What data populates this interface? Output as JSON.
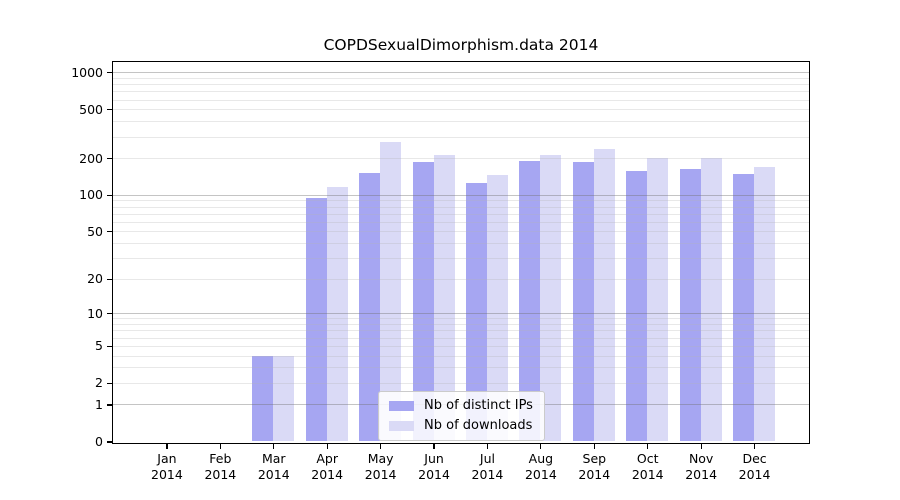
{
  "chart_data": {
    "type": "bar",
    "title": "COPDSexualDimorphism.data 2014",
    "categories": [
      "Jan 2014",
      "Feb 2014",
      "Mar 2014",
      "Apr 2014",
      "May 2014",
      "Jun 2014",
      "Jul 2014",
      "Aug 2014",
      "Sep 2014",
      "Oct 2014",
      "Nov 2014",
      "Dec 2014"
    ],
    "x_axis": {
      "months": [
        "Jan",
        "Feb",
        "Mar",
        "Apr",
        "May",
        "Jun",
        "Jul",
        "Aug",
        "Sep",
        "Oct",
        "Nov",
        "Dec"
      ],
      "year_label": "2014"
    },
    "series": [
      {
        "name": "Nb of distinct IPs",
        "color": "#a6a6f2",
        "values": [
          0,
          0,
          4,
          94,
          150,
          187,
          126,
          190,
          187,
          157,
          164,
          147
        ]
      },
      {
        "name": "Nb of downloads",
        "color": "#dadaf6",
        "values": [
          0,
          0,
          4,
          115,
          270,
          212,
          145,
          212,
          236,
          200,
          200,
          168
        ]
      }
    ],
    "y_axis": {
      "scale": "log1p",
      "ticks": [
        0,
        1,
        2,
        5,
        10,
        20,
        50,
        100,
        200,
        500,
        1000
      ],
      "max_value": 1225
    },
    "grid": {
      "major_lines": [
        1,
        10,
        100,
        1000
      ],
      "minor_lines": [
        2,
        3,
        4,
        5,
        6,
        7,
        8,
        9,
        20,
        30,
        40,
        50,
        60,
        70,
        80,
        90,
        200,
        300,
        400,
        500,
        600,
        700,
        800,
        900
      ]
    },
    "legend": {
      "position": "lower-center",
      "entries": [
        "Nb of distinct IPs",
        "Nb of downloads"
      ]
    }
  },
  "colors": {
    "bar_distinct_ips": "#a6a6f2",
    "bar_downloads": "#dadaf6",
    "axis": "#000000",
    "grid_major": "#c9c9c9",
    "grid_minor": "#e9e9e9",
    "background": "#ffffff"
  }
}
